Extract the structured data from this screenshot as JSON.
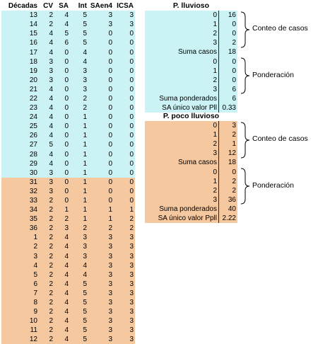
{
  "left_table": {
    "headers": [
      "Décadas",
      "CV",
      "SA",
      "Int",
      "SAen4",
      "ICSA"
    ],
    "rows": [
      [
        "13",
        "2",
        "4",
        "5",
        "3",
        "3"
      ],
      [
        "14",
        "2",
        "4",
        "5",
        "3",
        "3"
      ],
      [
        "15",
        "4",
        "5",
        "5",
        "0",
        "0"
      ],
      [
        "16",
        "4",
        "6",
        "5",
        "0",
        "0"
      ],
      [
        "17",
        "4",
        "0",
        "4",
        "0",
        "0"
      ],
      [
        "18",
        "3",
        "0",
        "4",
        "0",
        "0"
      ],
      [
        "19",
        "3",
        "0",
        "3",
        "0",
        "0"
      ],
      [
        "20",
        "3",
        "0",
        "3",
        "0",
        "0"
      ],
      [
        "21",
        "4",
        "0",
        "3",
        "0",
        "0"
      ],
      [
        "22",
        "4",
        "0",
        "2",
        "0",
        "0"
      ],
      [
        "23",
        "4",
        "0",
        "2",
        "0",
        "0"
      ],
      [
        "24",
        "4",
        "0",
        "1",
        "0",
        "0"
      ],
      [
        "25",
        "4",
        "0",
        "1",
        "0",
        "0"
      ],
      [
        "26",
        "4",
        "0",
        "1",
        "0",
        "0"
      ],
      [
        "27",
        "5",
        "0",
        "1",
        "0",
        "0"
      ],
      [
        "28",
        "4",
        "0",
        "1",
        "0",
        "0"
      ],
      [
        "29",
        "4",
        "0",
        "1",
        "0",
        "0"
      ],
      [
        "30",
        "3",
        "0",
        "1",
        "0",
        "0"
      ],
      [
        "31",
        "3",
        "0",
        "1",
        "0",
        "0"
      ],
      [
        "32",
        "3",
        "0",
        "1",
        "0",
        "0"
      ],
      [
        "33",
        "2",
        "0",
        "1",
        "0",
        "0"
      ],
      [
        "34",
        "2",
        "1",
        "1",
        "1",
        "1"
      ],
      [
        "35",
        "2",
        "2",
        "1",
        "1",
        "2"
      ],
      [
        "36",
        "2",
        "3",
        "2",
        "2",
        "2"
      ],
      [
        "1",
        "2",
        "4",
        "3",
        "3",
        "3"
      ],
      [
        "2",
        "2",
        "4",
        "3",
        "3",
        "3"
      ],
      [
        "3",
        "2",
        "4",
        "3",
        "3",
        "3"
      ],
      [
        "4",
        "2",
        "4",
        "4",
        "3",
        "3"
      ],
      [
        "5",
        "2",
        "4",
        "4",
        "3",
        "3"
      ],
      [
        "6",
        "2",
        "4",
        "5",
        "3",
        "3"
      ],
      [
        "7",
        "2",
        "4",
        "5",
        "3",
        "3"
      ],
      [
        "8",
        "2",
        "4",
        "5",
        "3",
        "3"
      ],
      [
        "9",
        "2",
        "4",
        "5",
        "3",
        "3"
      ],
      [
        "10",
        "2",
        "4",
        "5",
        "3",
        "3"
      ],
      [
        "11",
        "2",
        "4",
        "5",
        "3",
        "3"
      ],
      [
        "12",
        "2",
        "4",
        "5",
        "3",
        "3"
      ]
    ],
    "lluvioso_row_count": 18
  },
  "panel_lluvioso": {
    "title": "P. lluvioso",
    "conteo": [
      [
        "0",
        "16"
      ],
      [
        "1",
        "0"
      ],
      [
        "2",
        "0"
      ],
      [
        "3",
        "2"
      ]
    ],
    "suma_casos_label": "Suma casos",
    "suma_casos_value": "18",
    "ponderacion": [
      [
        "0",
        "0"
      ],
      [
        "1",
        "0"
      ],
      [
        "2",
        "0"
      ],
      [
        "3",
        "6"
      ]
    ],
    "suma_pond_label": "Suma ponderados",
    "suma_pond_value": "6",
    "sa_label": "SA único valor Pll",
    "sa_value": "0.33"
  },
  "panel_poco": {
    "title": "P. poco lluvioso",
    "conteo": [
      [
        "0",
        "3"
      ],
      [
        "1",
        "2"
      ],
      [
        "2",
        "1"
      ],
      [
        "3",
        "12"
      ]
    ],
    "suma_casos_label": "Suma casos",
    "suma_casos_value": "18",
    "ponderacion": [
      [
        "0",
        "0"
      ],
      [
        "1",
        "2"
      ],
      [
        "2",
        "2"
      ],
      [
        "3",
        "36"
      ]
    ],
    "suma_pond_label": "Suma ponderados",
    "suma_pond_value": "40",
    "sa_label": "SA único valor Ppll",
    "sa_value": "2.22"
  },
  "brace_labels": {
    "conteo": "Conteo de casos",
    "ponderacion": "Ponderación"
  },
  "colors": {
    "lluvioso_bg": "#cbf3f6",
    "poco_lluvioso_bg": "#f6c8a0"
  }
}
